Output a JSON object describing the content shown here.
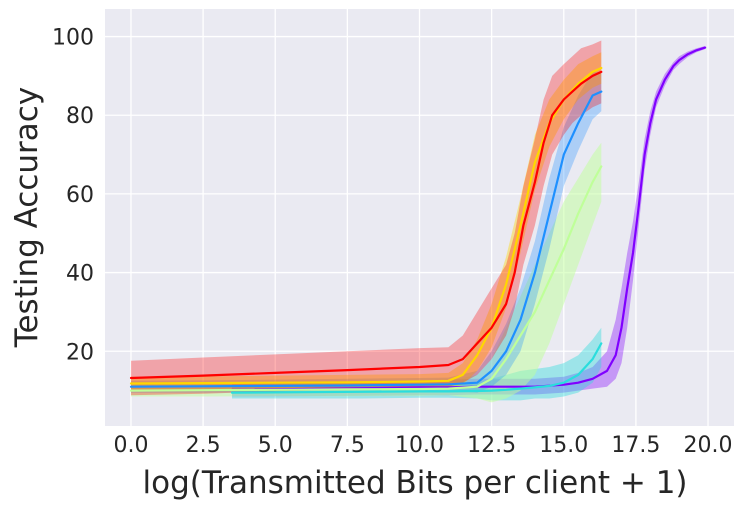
{
  "chart_data": {
    "type": "line",
    "title": "",
    "xlabel": "log(Transmitted Bits per client + 1)",
    "ylabel": "Testing Accuracy",
    "xlim": [
      -0.9,
      20.9
    ],
    "ylim": [
      1,
      107
    ],
    "xticks": [
      0.0,
      2.5,
      5.0,
      7.5,
      10.0,
      12.5,
      15.0,
      17.5,
      20.0
    ],
    "xtick_labels": [
      "0.0",
      "2.5",
      "5.0",
      "7.5",
      "10.0",
      "12.5",
      "15.0",
      "17.5",
      "20.0"
    ],
    "yticks": [
      20,
      40,
      60,
      80,
      100
    ],
    "ytick_labels": [
      "20",
      "40",
      "60",
      "80",
      "100"
    ],
    "grid": true,
    "legend": "none",
    "background": "#eaeaf2",
    "series": [
      {
        "color": "#8000ff",
        "band_opacity": 0.35,
        "x": [
          3.5,
          6,
          8,
          10,
          11,
          12,
          13,
          14,
          15,
          15.5,
          16,
          16.5,
          16.8,
          17,
          17.2,
          17.4,
          17.6,
          17.8,
          18,
          18.2,
          18.5,
          18.8,
          19,
          19.3,
          19.6,
          19.9
        ],
        "y": [
          10.2,
          10.4,
          10.6,
          10.8,
          10.8,
          11.0,
          11.0,
          11.0,
          11.5,
          12,
          13,
          15,
          19,
          26,
          36,
          45,
          57,
          70,
          78,
          84,
          89,
          92.5,
          94,
          95.5,
          96.5,
          97.2
        ],
        "lower": [
          8.5,
          8.6,
          8.7,
          8.8,
          8.8,
          9,
          9,
          9,
          9.5,
          10,
          10.5,
          11,
          13,
          17,
          26,
          38,
          52,
          66,
          75,
          82,
          87.5,
          91.5,
          93,
          94.8,
          96,
          96.8
        ],
        "upper": [
          11.8,
          12,
          12.3,
          12.6,
          12.8,
          13,
          13,
          13,
          13.5,
          14.5,
          16,
          20,
          28,
          36,
          45,
          53,
          63,
          74,
          81,
          86,
          90.5,
          93.5,
          95,
          96.2,
          97,
          97.6
        ]
      },
      {
        "color": "#2adddd",
        "band_opacity": 0.4,
        "x": [
          3.5,
          6,
          8,
          10,
          11,
          12,
          12.5,
          13,
          13.5,
          14,
          14.5,
          15,
          15.5,
          16,
          16.3
        ],
        "y": [
          9.5,
          9.6,
          9.7,
          9.8,
          9.8,
          9.9,
          10,
          10.2,
          10.5,
          10.8,
          11.2,
          12,
          14,
          18,
          22
        ],
        "lower": [
          8,
          8,
          8,
          8.2,
          8.2,
          8,
          7.5,
          7.5,
          7.5,
          8,
          8,
          8.5,
          9.5,
          12,
          16
        ],
        "upper": [
          11,
          11.2,
          11.3,
          11.5,
          11.5,
          12,
          13,
          14,
          15,
          15.5,
          16,
          17,
          19,
          23,
          26
        ]
      },
      {
        "color": "#bfff99",
        "band_opacity": 0.5,
        "x": [
          0,
          2.5,
          5,
          7.5,
          10,
          11,
          12,
          12.5,
          13,
          13.5,
          14,
          14.5,
          15,
          15.5,
          16,
          16.3
        ],
        "y": [
          10,
          10.1,
          10.2,
          10.3,
          10.4,
          10.5,
          11,
          13,
          18,
          24,
          30,
          38,
          46,
          55,
          63,
          67
        ],
        "lower": [
          8.5,
          8.5,
          8.6,
          8.6,
          8.7,
          8.8,
          8,
          7,
          8,
          10,
          14,
          22,
          32,
          42,
          52,
          58
        ],
        "upper": [
          11.5,
          11.6,
          11.8,
          12,
          12.2,
          12.5,
          14,
          18,
          26,
          34,
          42,
          50,
          58,
          64,
          70,
          73
        ]
      },
      {
        "color": "#1e90ff",
        "band_opacity": 0.3,
        "x": [
          0,
          2.5,
          5,
          7.5,
          10,
          11,
          12,
          12.5,
          13,
          13.5,
          14,
          14.5,
          15,
          15.5,
          16,
          16.3
        ],
        "y": [
          11,
          11.1,
          11.2,
          11.3,
          11.5,
          11.6,
          12,
          15,
          20,
          28,
          40,
          55,
          70,
          78,
          85,
          86
        ],
        "lower": [
          9.5,
          9.5,
          9.6,
          9.6,
          9.8,
          10,
          9.5,
          11,
          14,
          20,
          32,
          46,
          62,
          71,
          79,
          81
        ],
        "upper": [
          12.5,
          12.6,
          12.8,
          13,
          13.2,
          13.3,
          15,
          20,
          27,
          36,
          48,
          64,
          77,
          85,
          91,
          91
        ]
      },
      {
        "color": "#ffd700",
        "band_opacity": 0.4,
        "x": [
          0,
          2.5,
          5,
          7.5,
          10,
          11,
          11.5,
          12,
          12.5,
          13,
          13.5,
          14,
          14.5,
          15,
          15.5,
          16,
          16.3
        ],
        "y": [
          11.8,
          11.9,
          12,
          12.1,
          12.3,
          12.5,
          14,
          19,
          26,
          37,
          52,
          68,
          78,
          84,
          88,
          91,
          92
        ],
        "lower": [
          10,
          10,
          10.2,
          10.3,
          10.4,
          10.5,
          11.5,
          15,
          21,
          31,
          45,
          61,
          72,
          79,
          84,
          87,
          88
        ],
        "upper": [
          13.5,
          13.6,
          13.8,
          14,
          14.2,
          14.5,
          17,
          23,
          32,
          44,
          59,
          75,
          84,
          89,
          93,
          95,
          96
        ]
      },
      {
        "color": "#ff0000",
        "band_opacity": 0.3,
        "x": [
          0,
          2.5,
          5,
          7.5,
          10,
          11,
          11.5,
          12,
          12.5,
          13,
          13.3,
          13.6,
          14,
          14.3,
          14.6,
          15,
          15.3,
          15.6,
          16,
          16.3
        ],
        "y": [
          13.2,
          13.8,
          14.5,
          15.2,
          16,
          16.5,
          18,
          22,
          26,
          32,
          40,
          52,
          63,
          73,
          80,
          84,
          86,
          88,
          90,
          91
        ],
        "lower": [
          8.8,
          9.2,
          9.8,
          10.2,
          10.8,
          11,
          12,
          14,
          18,
          24,
          31,
          42,
          52,
          62,
          70,
          75,
          78,
          80,
          82,
          83
        ],
        "upper": [
          17.6,
          18.4,
          19.2,
          20,
          20.8,
          21,
          24,
          30,
          36,
          42,
          50,
          62,
          74,
          84,
          90,
          93,
          95,
          97,
          98,
          99
        ]
      }
    ]
  }
}
